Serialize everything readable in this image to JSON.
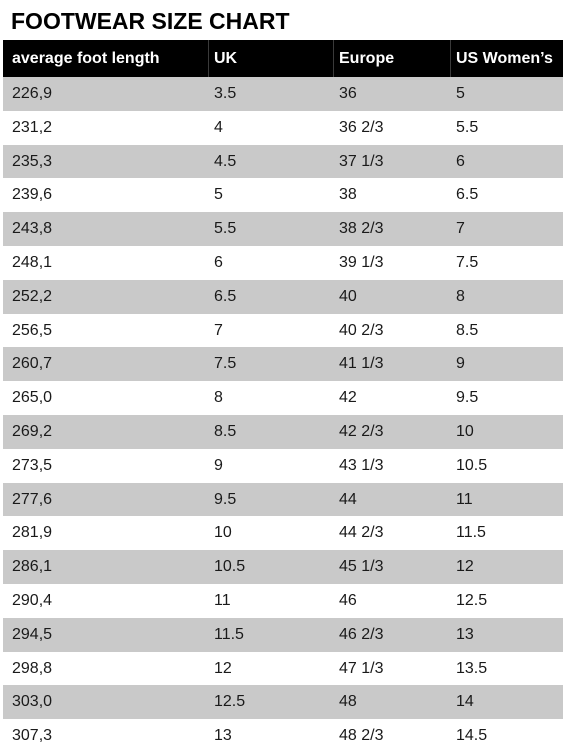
{
  "title": "FOOTWEAR SIZE CHART",
  "table": {
    "headers": [
      "average foot length",
      "UK",
      "Europe",
      "US Women’s"
    ],
    "rows": [
      [
        "226,9",
        "3.5",
        "36",
        "5"
      ],
      [
        "231,2",
        "4",
        "36 2/3",
        "5.5"
      ],
      [
        "235,3",
        "4.5",
        "37 1/3",
        "6"
      ],
      [
        "239,6",
        "5",
        "38",
        "6.5"
      ],
      [
        "243,8",
        "5.5",
        "38 2/3",
        "7"
      ],
      [
        "248,1",
        "6",
        "39 1/3",
        "7.5"
      ],
      [
        "252,2",
        "6.5",
        "40",
        "8"
      ],
      [
        "256,5",
        "7",
        "40 2/3",
        "8.5"
      ],
      [
        "260,7",
        "7.5",
        "41 1/3",
        "9"
      ],
      [
        "265,0",
        "8",
        "42",
        "9.5"
      ],
      [
        "269,2",
        "8.5",
        "42 2/3",
        "10"
      ],
      [
        "273,5",
        "9",
        "43 1/3",
        "10.5"
      ],
      [
        "277,6",
        "9.5",
        "44",
        "11"
      ],
      [
        "281,9",
        "10",
        "44 2/3",
        "11.5"
      ],
      [
        "286,1",
        "10.5",
        "45 1/3",
        "12"
      ],
      [
        "290,4",
        "11",
        "46",
        "12.5"
      ],
      [
        "294,5",
        "11.5",
        "46 2/3",
        "13"
      ],
      [
        "298,8",
        "12",
        "47 1/3",
        "13.5"
      ],
      [
        "303,0",
        "12.5",
        "48",
        "14"
      ],
      [
        "307,3",
        "13",
        "48 2/3",
        "14.5"
      ]
    ]
  },
  "colors": {
    "header_bg": "#000000",
    "header_text": "#ffffff",
    "shaded_row": "#c9c9c9",
    "plain_row": "#ffffff"
  }
}
